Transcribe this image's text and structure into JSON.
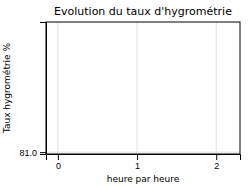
{
  "chart_data": {
    "type": "line",
    "title": "Evolution du taux d'hygrométrie",
    "xlabel": "heure par heure",
    "ylabel": "Taux hygrométrie %",
    "xlim": [
      -0.15,
      2.3
    ],
    "xticks": [
      0,
      1,
      2
    ],
    "ylim": [
      80.95,
      84.5
    ],
    "yticks": [
      {
        "value": 81.0,
        "label": "81.0"
      }
    ],
    "grid": true
  }
}
